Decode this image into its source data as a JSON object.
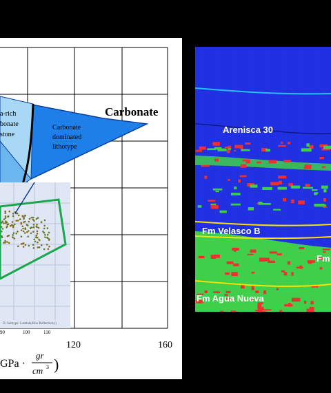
{
  "left_panel": {
    "region_labels": {
      "carbonate_heading": "Carbonate",
      "carbonate_dominated": [
        "Carbonate",
        "dominated",
        "lithotype"
      ],
      "rich_partial": [
        "a-rich",
        "bonate",
        "stone"
      ]
    },
    "x_axis": {
      "ticks": [
        "120",
        "160"
      ],
      "unit_prefix": "GPa ·",
      "unit_numerator": "gr",
      "unit_denominator": "cm",
      "unit_exponent": "3",
      "close_paren": ")"
    },
    "inset": {
      "ticks": [
        "90",
        "100",
        "110"
      ],
      "caption": "D. Subtype: Lambda/Rho Reflectivity)"
    },
    "colors": {
      "carbonate_fill": "#1f7fe8",
      "light_fill": "#a9d8f6",
      "mid_fill": "#6cb6f0",
      "green_polygon": "#1aa64a",
      "inset_bg": "#dfe6f4"
    }
  },
  "right_panel": {
    "labels": {
      "arenisca": "Arenisca 30",
      "velasco": "Fm Velasco B",
      "agua_nueva": "Fm Agua Nueva",
      "cut_label": "Fm"
    },
    "colors": {
      "background_blue": "#1f2fe0",
      "horizon_cyan": "#22c0ff",
      "horizon_yellow": "#ffe000",
      "facies_green": "#3fcf4a",
      "facies_red": "#f03030"
    }
  }
}
